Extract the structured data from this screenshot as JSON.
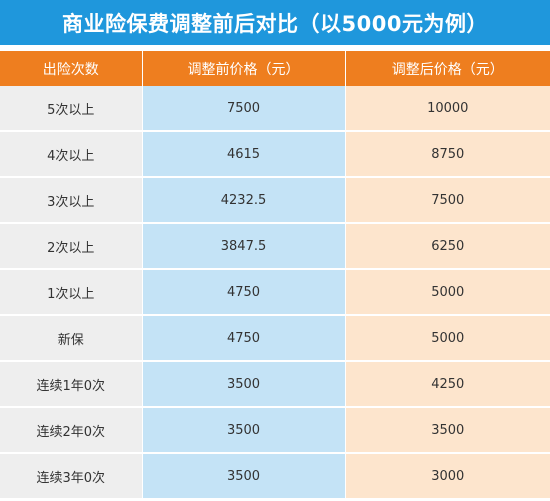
{
  "title": "商业险保费调整前后对比（以5000元为例）",
  "columns": [
    "出险次数",
    "调整前价格（元）",
    "调整后价格（元）"
  ],
  "rows": [
    {
      "times": "5次以上",
      "before": "7500",
      "after": "10000"
    },
    {
      "times": "4次以上",
      "before": "4615",
      "after": "8750"
    },
    {
      "times": "3次以上",
      "before": "4232.5",
      "after": "7500"
    },
    {
      "times": "2次以上",
      "before": "3847.5",
      "after": "6250"
    },
    {
      "times": "1次以上",
      "before": "4750",
      "after": "5000"
    },
    {
      "times": "新保",
      "before": "4750",
      "after": "5000"
    },
    {
      "times": "连续1年0次",
      "before": "3500",
      "after": "4250"
    },
    {
      "times": "连续2年0次",
      "before": "3500",
      "after": "3500"
    },
    {
      "times": "连续3年0次",
      "before": "3500",
      "after": "3000"
    }
  ],
  "colors": {
    "title_bg": "#1f97dc",
    "header_bg": "#ee7e1f",
    "col_times_bg": "#eeeeee",
    "col_before_bg": "#c4e3f6",
    "col_after_bg": "#fde5cd"
  }
}
